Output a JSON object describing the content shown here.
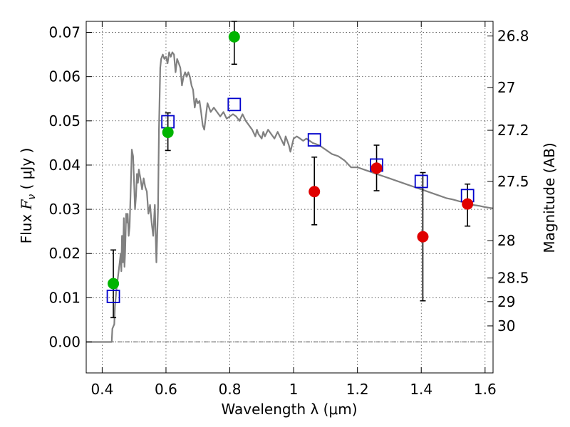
{
  "chart_data": {
    "type": "scatter",
    "xlabel": "Wavelength  λ (μm)",
    "ylabel_prefix": "Flux ",
    "ylabel_symbol": "F",
    "ylabel_sub": "ν",
    "ylabel_unit": "  ( μJy )",
    "y2label": "Magnitude (AB)",
    "xlim": [
      0.35,
      1.625
    ],
    "ylim": [
      -0.007,
      0.0725
    ],
    "grid": true,
    "xticks": [
      {
        "v": 0.4,
        "label": "0.4"
      },
      {
        "v": 0.6,
        "label": "0.6"
      },
      {
        "v": 0.8,
        "label": "0.8"
      },
      {
        "v": 1.0,
        "label": "1"
      },
      {
        "v": 1.2,
        "label": "1.2"
      },
      {
        "v": 1.4,
        "label": "1.4"
      },
      {
        "v": 1.6,
        "label": "1.6"
      }
    ],
    "yticks": [
      {
        "v": 0.0,
        "label": "0.00"
      },
      {
        "v": 0.01,
        "label": "0.01"
      },
      {
        "v": 0.02,
        "label": "0.02"
      },
      {
        "v": 0.03,
        "label": "0.03"
      },
      {
        "v": 0.04,
        "label": "0.04"
      },
      {
        "v": 0.05,
        "label": "0.05"
      },
      {
        "v": 0.06,
        "label": "0.06"
      },
      {
        "v": 0.07,
        "label": "0.07"
      }
    ],
    "mag_ticks": [
      {
        "mag": 26.8,
        "label": "26.8"
      },
      {
        "mag": 27.0,
        "label": "27"
      },
      {
        "mag": 27.2,
        "label": "27.2"
      },
      {
        "mag": 27.5,
        "label": "27.5"
      },
      {
        "mag": 28.0,
        "label": "28"
      },
      {
        "mag": 28.5,
        "label": "28.5"
      },
      {
        "mag": 29.0,
        "label": "29"
      },
      {
        "mag": 30.0,
        "label": "30"
      }
    ],
    "model_sed": {
      "color": "#808080",
      "points": [
        [
          0.35,
          0.0
        ],
        [
          0.43,
          0.0
        ],
        [
          0.432,
          0.003
        ],
        [
          0.438,
          0.004
        ],
        [
          0.44,
          0.008
        ],
        [
          0.445,
          0.012
        ],
        [
          0.45,
          0.015
        ],
        [
          0.455,
          0.018
        ],
        [
          0.458,
          0.02
        ],
        [
          0.46,
          0.016
        ],
        [
          0.462,
          0.024
        ],
        [
          0.465,
          0.018
        ],
        [
          0.468,
          0.028
        ],
        [
          0.47,
          0.017
        ],
        [
          0.472,
          0.02
        ],
        [
          0.475,
          0.029
        ],
        [
          0.478,
          0.027
        ],
        [
          0.48,
          0.029
        ],
        [
          0.483,
          0.024
        ],
        [
          0.486,
          0.026
        ],
        [
          0.49,
          0.036
        ],
        [
          0.493,
          0.0435
        ],
        [
          0.497,
          0.042
        ],
        [
          0.5,
          0.036
        ],
        [
          0.503,
          0.03
        ],
        [
          0.506,
          0.033
        ],
        [
          0.509,
          0.038
        ],
        [
          0.512,
          0.036
        ],
        [
          0.515,
          0.039
        ],
        [
          0.52,
          0.037
        ],
        [
          0.525,
          0.0345
        ],
        [
          0.53,
          0.037
        ],
        [
          0.535,
          0.035
        ],
        [
          0.54,
          0.034
        ],
        [
          0.545,
          0.029
        ],
        [
          0.55,
          0.031
        ],
        [
          0.555,
          0.027
        ],
        [
          0.56,
          0.024
        ],
        [
          0.565,
          0.031
        ],
        [
          0.57,
          0.018
        ],
        [
          0.575,
          0.03
        ],
        [
          0.578,
          0.048
        ],
        [
          0.582,
          0.062
        ],
        [
          0.585,
          0.064
        ],
        [
          0.59,
          0.065
        ],
        [
          0.595,
          0.064
        ],
        [
          0.6,
          0.0645
        ],
        [
          0.605,
          0.063
        ],
        [
          0.61,
          0.0655
        ],
        [
          0.615,
          0.0645
        ],
        [
          0.62,
          0.0655
        ],
        [
          0.625,
          0.065
        ],
        [
          0.63,
          0.061
        ],
        [
          0.635,
          0.064
        ],
        [
          0.64,
          0.063
        ],
        [
          0.645,
          0.062
        ],
        [
          0.65,
          0.058
        ],
        [
          0.655,
          0.06
        ],
        [
          0.66,
          0.061
        ],
        [
          0.665,
          0.06
        ],
        [
          0.67,
          0.061
        ],
        [
          0.675,
          0.06
        ],
        [
          0.68,
          0.058
        ],
        [
          0.685,
          0.057
        ],
        [
          0.69,
          0.053
        ],
        [
          0.695,
          0.055
        ],
        [
          0.7,
          0.054
        ],
        [
          0.705,
          0.0545
        ],
        [
          0.71,
          0.052
        ],
        [
          0.715,
          0.049
        ],
        [
          0.72,
          0.048
        ],
        [
          0.725,
          0.051
        ],
        [
          0.73,
          0.054
        ],
        [
          0.74,
          0.052
        ],
        [
          0.75,
          0.053
        ],
        [
          0.76,
          0.052
        ],
        [
          0.77,
          0.051
        ],
        [
          0.78,
          0.052
        ],
        [
          0.79,
          0.0505
        ],
        [
          0.8,
          0.051
        ],
        [
          0.81,
          0.0515
        ],
        [
          0.82,
          0.051
        ],
        [
          0.83,
          0.05
        ],
        [
          0.84,
          0.0515
        ],
        [
          0.85,
          0.05
        ],
        [
          0.86,
          0.049
        ],
        [
          0.87,
          0.048
        ],
        [
          0.88,
          0.0465
        ],
        [
          0.885,
          0.048
        ],
        [
          0.89,
          0.047
        ],
        [
          0.9,
          0.046
        ],
        [
          0.905,
          0.0475
        ],
        [
          0.91,
          0.0465
        ],
        [
          0.92,
          0.048
        ],
        [
          0.93,
          0.047
        ],
        [
          0.94,
          0.046
        ],
        [
          0.95,
          0.0475
        ],
        [
          0.96,
          0.046
        ],
        [
          0.97,
          0.0445
        ],
        [
          0.975,
          0.0465
        ],
        [
          0.985,
          0.0445
        ],
        [
          0.99,
          0.043
        ],
        [
          1.0,
          0.046
        ],
        [
          1.01,
          0.0465
        ],
        [
          1.02,
          0.046
        ],
        [
          1.03,
          0.0455
        ],
        [
          1.04,
          0.046
        ],
        [
          1.05,
          0.0455
        ],
        [
          1.06,
          0.045
        ],
        [
          1.08,
          0.0445
        ],
        [
          1.1,
          0.0435
        ],
        [
          1.12,
          0.0425
        ],
        [
          1.14,
          0.042
        ],
        [
          1.16,
          0.041
        ],
        [
          1.18,
          0.0395
        ],
        [
          1.2,
          0.0395
        ],
        [
          1.22,
          0.039
        ],
        [
          1.24,
          0.0385
        ],
        [
          1.26,
          0.038
        ],
        [
          1.28,
          0.0375
        ],
        [
          1.3,
          0.037
        ],
        [
          1.32,
          0.0365
        ],
        [
          1.34,
          0.036
        ],
        [
          1.36,
          0.0355
        ],
        [
          1.38,
          0.035
        ],
        [
          1.4,
          0.0345
        ],
        [
          1.42,
          0.034
        ],
        [
          1.44,
          0.0335
        ],
        [
          1.46,
          0.033
        ],
        [
          1.48,
          0.0325
        ],
        [
          1.5,
          0.0322
        ],
        [
          1.52,
          0.0318
        ],
        [
          1.54,
          0.0315
        ],
        [
          1.56,
          0.031
        ],
        [
          1.58,
          0.0308
        ],
        [
          1.6,
          0.0305
        ],
        [
          1.625,
          0.0302
        ]
      ]
    },
    "model_photometry": {
      "color": "#0000cc",
      "points": [
        {
          "x": 0.435,
          "y": 0.0103
        },
        {
          "x": 0.606,
          "y": 0.0498
        },
        {
          "x": 0.814,
          "y": 0.0537
        },
        {
          "x": 1.065,
          "y": 0.0457
        },
        {
          "x": 1.26,
          "y": 0.04
        },
        {
          "x": 1.4,
          "y": 0.0363
        },
        {
          "x": 1.545,
          "y": 0.0331
        }
      ]
    },
    "observed_green": {
      "color": "#00b400",
      "points": [
        {
          "x": 0.435,
          "y": 0.0132,
          "lo": 0.0055,
          "hi": 0.0208
        },
        {
          "x": 0.606,
          "y": 0.0474,
          "lo": 0.0433,
          "hi": 0.0518
        },
        {
          "x": 0.814,
          "y": 0.069,
          "lo": 0.0628,
          "hi": 0.0725
        }
      ]
    },
    "observed_red": {
      "color": "#e00000",
      "points": [
        {
          "x": 1.065,
          "y": 0.034,
          "lo": 0.0265,
          "hi": 0.0418
        },
        {
          "x": 1.26,
          "y": 0.0393,
          "lo": 0.0342,
          "hi": 0.0445
        },
        {
          "x": 1.405,
          "y": 0.0238,
          "lo": 0.0093,
          "hi": 0.0383
        },
        {
          "x": 1.545,
          "y": 0.0312,
          "lo": 0.0262,
          "hi": 0.0357
        }
      ]
    }
  }
}
